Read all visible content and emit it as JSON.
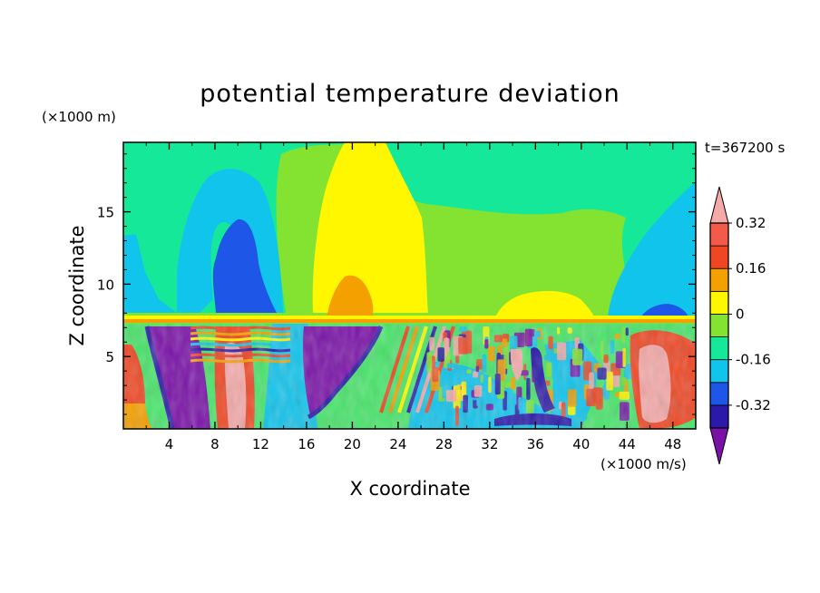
{
  "chart_data": {
    "type": "heatmap",
    "title": "potential temperature deviation",
    "xlabel": "X coordinate",
    "ylabel": "Z coordinate",
    "x_units": "(×1000 m/s)",
    "y_units": "(×1000 m)",
    "time_label": "t=367200 s",
    "xlim": [
      0,
      50
    ],
    "ylim": [
      0,
      19.8
    ],
    "x_ticks": [
      4,
      8,
      12,
      16,
      20,
      24,
      28,
      32,
      36,
      40,
      44,
      48
    ],
    "y_ticks": [
      5,
      10,
      15
    ],
    "colorbar": {
      "levels": [
        -0.4,
        -0.32,
        -0.24,
        -0.16,
        -0.08,
        0,
        0.08,
        0.16,
        0.24,
        0.32,
        0.4
      ],
      "labels": [
        "-0.32",
        "-0.16",
        "0",
        "0.16",
        "0.32"
      ],
      "label_values": [
        -0.32,
        -0.16,
        0,
        0.16,
        0.32
      ],
      "colors": [
        "#7a12a8",
        "#2b1aa9",
        "#1e56e8",
        "#11c4ec",
        "#16e89a",
        "#83e330",
        "#fff700",
        "#f4a000",
        "#ef4623",
        "#f45a4a",
        "#f5a9a9"
      ],
      "extend": "both"
    },
    "upper_regions": [
      {
        "name": "cyan-left",
        "value": -0.12,
        "x_range": [
          4,
          14
        ],
        "z_range": [
          8,
          18
        ]
      },
      {
        "name": "blue-left",
        "value": -0.22,
        "x_range": [
          7.5,
          13
        ],
        "z_range": [
          8,
          14.5
        ]
      },
      {
        "name": "yellow-center",
        "value": 0.12,
        "x_range": [
          17,
          27
        ],
        "z_range": [
          7.5,
          19.8
        ]
      },
      {
        "name": "orange-center",
        "value": 0.18,
        "x_range": [
          17.5,
          21
        ],
        "z_range": [
          7.5,
          10.2
        ]
      },
      {
        "name": "cyan-right",
        "value": -0.12,
        "x_range": [
          40,
          50
        ],
        "z_range": [
          7.5,
          16
        ]
      },
      {
        "name": "blue-right",
        "value": -0.22,
        "x_range": [
          44.5,
          48
        ],
        "z_range": [
          7.5,
          8.5
        ]
      }
    ],
    "lower_regions": [
      {
        "name": "purple-left",
        "value": -0.38,
        "x_range": [
          2,
          8
        ],
        "z_range": [
          0,
          7
        ]
      },
      {
        "name": "pink-left",
        "value": 0.36,
        "x_range": [
          9,
          11
        ],
        "z_range": [
          0,
          5
        ]
      },
      {
        "name": "purple-center",
        "value": -0.38,
        "x_range": [
          16,
          23
        ],
        "z_range": [
          1.5,
          7
        ]
      },
      {
        "name": "pink-right",
        "value": 0.36,
        "x_range": [
          44,
          48
        ],
        "z_range": [
          0.5,
          5.5
        ]
      },
      {
        "name": "blue-streak",
        "value": -0.32,
        "x_range": [
          34,
          36
        ],
        "z_range": [
          0.5,
          6
        ]
      }
    ]
  }
}
